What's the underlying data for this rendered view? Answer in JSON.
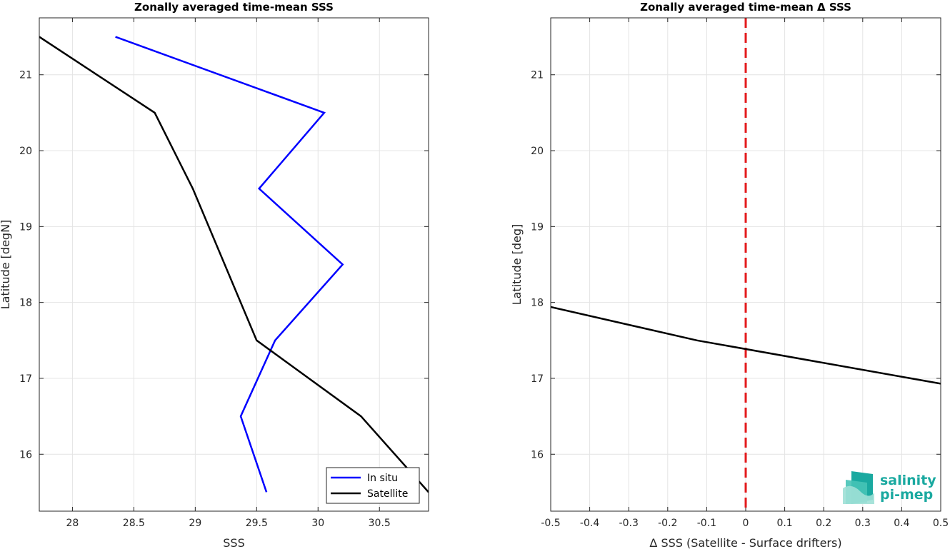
{
  "chart_data": [
    {
      "type": "line",
      "title": "Zonally averaged time-mean SSS",
      "xlabel": "SSS",
      "ylabel": "Latitude [degN]",
      "xlim": [
        27.73,
        30.9
      ],
      "ylim": [
        15.25,
        21.75
      ],
      "xticks": [
        "28",
        "28.5",
        "29",
        "29.5",
        "30",
        "30.5"
      ],
      "yticks": [
        "16",
        "17",
        "18",
        "19",
        "20",
        "21"
      ],
      "grid": true,
      "legend": "bottom-right",
      "series": [
        {
          "name": "In situ",
          "color": "#0000ff",
          "points": [
            {
              "x": 28.35,
              "y": 21.5
            },
            {
              "x": 30.05,
              "y": 20.5
            },
            {
              "x": 29.52,
              "y": 19.5
            },
            {
              "x": 30.2,
              "y": 18.5
            },
            {
              "x": 29.65,
              "y": 17.5
            },
            {
              "x": 29.37,
              "y": 16.5
            },
            {
              "x": 29.58,
              "y": 15.5
            }
          ]
        },
        {
          "name": "Satellite",
          "color": "#000000",
          "points": [
            {
              "x": 27.73,
              "y": 21.5
            },
            {
              "x": 28.67,
              "y": 20.5
            },
            {
              "x": 28.98,
              "y": 19.5
            },
            {
              "x": 29.5,
              "y": 17.5
            },
            {
              "x": 30.35,
              "y": 16.5
            },
            {
              "x": 30.9,
              "y": 15.5
            }
          ]
        }
      ]
    },
    {
      "type": "line",
      "title": "Zonally averaged time-mean Δ SSS",
      "xlabel": "Δ SSS (Satellite - Surface drifters)",
      "ylabel": "Latitude [deg]",
      "xlim": [
        -0.5,
        0.5
      ],
      "ylim": [
        15.25,
        21.75
      ],
      "xticks": [
        "-0.5",
        "-0.4",
        "-0.3",
        "-0.2",
        "-0.1",
        "0",
        "0.1",
        "0.2",
        "0.3",
        "0.4",
        "0.5"
      ],
      "yticks": [
        "16",
        "17",
        "18",
        "19",
        "20",
        "21"
      ],
      "grid": true,
      "reference_line": {
        "x": 0,
        "color": "#e31a1c",
        "style": "dashed"
      },
      "series": [
        {
          "color": "#000000",
          "points": [
            {
              "x": -0.5,
              "y": 17.94
            },
            {
              "x": -0.125,
              "y": 17.5
            },
            {
              "x": 0.5,
              "y": 16.93
            }
          ]
        }
      ]
    }
  ],
  "logo": {
    "line1": "salinity",
    "line2": "pi-mep",
    "color": "#1aa9a0"
  }
}
